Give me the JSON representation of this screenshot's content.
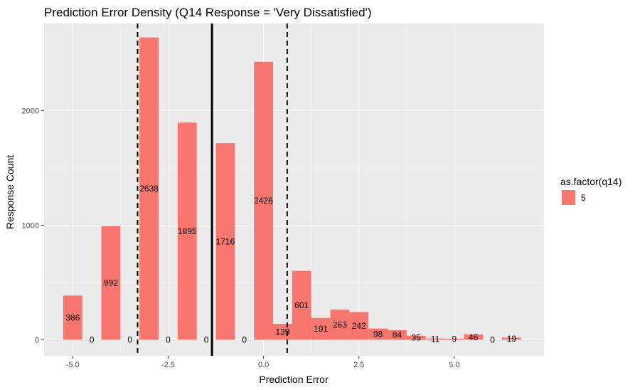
{
  "chart_data": {
    "type": "bar",
    "title": "Prediction Error Density (Q14 Response = 'Very Dissatisfied')",
    "xlabel": "Prediction Error",
    "ylabel": "Response Count",
    "xlim": [
      -5.75,
      7.35
    ],
    "ylim": [
      -140,
      2760
    ],
    "x_ticks": [
      -5.0,
      -2.5,
      0.0,
      2.5,
      5.0
    ],
    "x_tick_labels": [
      "-5.0",
      "-2.5",
      "0.0",
      "2.5",
      "5.0"
    ],
    "y_ticks": [
      0,
      1000,
      2000
    ],
    "y_tick_labels": [
      "0",
      "1000",
      "2000"
    ],
    "bin_width": 0.5,
    "bins": [
      {
        "x": -5.0,
        "count": 386,
        "label": "386"
      },
      {
        "x": -4.5,
        "count": 0,
        "label": "0"
      },
      {
        "x": -4.0,
        "count": 992,
        "label": "992"
      },
      {
        "x": -3.5,
        "count": 0,
        "label": "0"
      },
      {
        "x": -3.0,
        "count": 2638,
        "label": "2638"
      },
      {
        "x": -2.5,
        "count": 0,
        "label": "0"
      },
      {
        "x": -2.0,
        "count": 1895,
        "label": "1895"
      },
      {
        "x": -1.5,
        "count": 0,
        "label": "0"
      },
      {
        "x": -1.0,
        "count": 1716,
        "label": "1716"
      },
      {
        "x": -0.5,
        "count": 0,
        "label": "0"
      },
      {
        "x": 0.0,
        "count": 2426,
        "label": "2426"
      },
      {
        "x": 0.5,
        "count": 139,
        "label": "139"
      },
      {
        "x": 1.0,
        "count": 601,
        "label": "601"
      },
      {
        "x": 1.5,
        "count": 191,
        "label": "191"
      },
      {
        "x": 2.0,
        "count": 263,
        "label": "263"
      },
      {
        "x": 2.5,
        "count": 242,
        "label": "242"
      },
      {
        "x": 3.0,
        "count": 98,
        "label": "98"
      },
      {
        "x": 3.5,
        "count": 84,
        "label": "84"
      },
      {
        "x": 4.0,
        "count": 35,
        "label": "35"
      },
      {
        "x": 4.5,
        "count": 11,
        "label": "11"
      },
      {
        "x": 5.0,
        "count": 9,
        "label": "9"
      },
      {
        "x": 5.5,
        "count": 46,
        "label": "46"
      },
      {
        "x": 6.0,
        "count": 0,
        "label": "0"
      },
      {
        "x": 6.5,
        "count": 19,
        "label": "19"
      }
    ],
    "vlines": [
      {
        "x": -3.3,
        "style": "dashed"
      },
      {
        "x": -1.35,
        "style": "solid"
      },
      {
        "x": 0.62,
        "style": "dashed"
      }
    ],
    "legend": {
      "title": "as.factor(q14)",
      "entries": [
        {
          "label": "5",
          "color": "#F8766D"
        }
      ],
      "position": "right"
    },
    "colors": {
      "bar": "#F8766D",
      "panel": "#EBEBEB",
      "grid_major": "#FFFFFF",
      "grid_minor": "#F5F5F5"
    },
    "grid": true
  }
}
